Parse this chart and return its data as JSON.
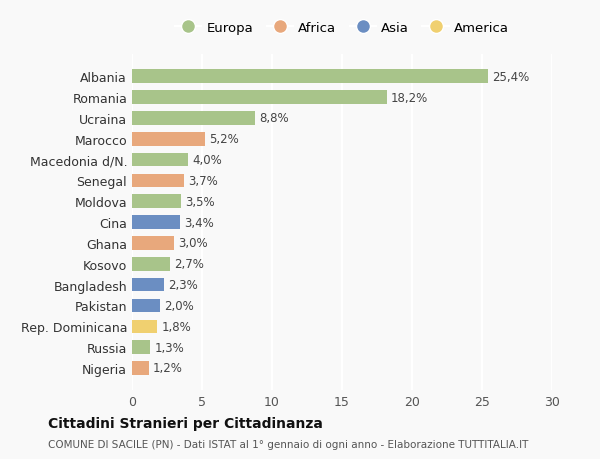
{
  "countries": [
    "Albania",
    "Romania",
    "Ucraina",
    "Marocco",
    "Macedonia d/N.",
    "Senegal",
    "Moldova",
    "Cina",
    "Ghana",
    "Kosovo",
    "Bangladesh",
    "Pakistan",
    "Rep. Dominicana",
    "Russia",
    "Nigeria"
  ],
  "values": [
    25.4,
    18.2,
    8.8,
    5.2,
    4.0,
    3.7,
    3.5,
    3.4,
    3.0,
    2.7,
    2.3,
    2.0,
    1.8,
    1.3,
    1.2
  ],
  "labels": [
    "25,4%",
    "18,2%",
    "8,8%",
    "5,2%",
    "4,0%",
    "3,7%",
    "3,5%",
    "3,4%",
    "3,0%",
    "2,7%",
    "2,3%",
    "2,0%",
    "1,8%",
    "1,3%",
    "1,2%"
  ],
  "continents": [
    "Europa",
    "Europa",
    "Europa",
    "Africa",
    "Europa",
    "Africa",
    "Europa",
    "Asia",
    "Africa",
    "Europa",
    "Asia",
    "Asia",
    "America",
    "Europa",
    "Africa"
  ],
  "continent_colors": {
    "Europa": "#a8c48a",
    "Africa": "#e8a87c",
    "Asia": "#6b8ec2",
    "America": "#f0d070"
  },
  "legend_order": [
    "Europa",
    "Africa",
    "Asia",
    "America"
  ],
  "title": "Cittadini Stranieri per Cittadinanza",
  "subtitle": "COMUNE DI SACILE (PN) - Dati ISTAT al 1° gennaio di ogni anno - Elaborazione TUTTITALIA.IT",
  "xlim": [
    0,
    30
  ],
  "xticks": [
    0,
    5,
    10,
    15,
    20,
    25,
    30
  ],
  "background_color": "#f9f9f9",
  "grid_color": "#ffffff",
  "bar_height": 0.65
}
